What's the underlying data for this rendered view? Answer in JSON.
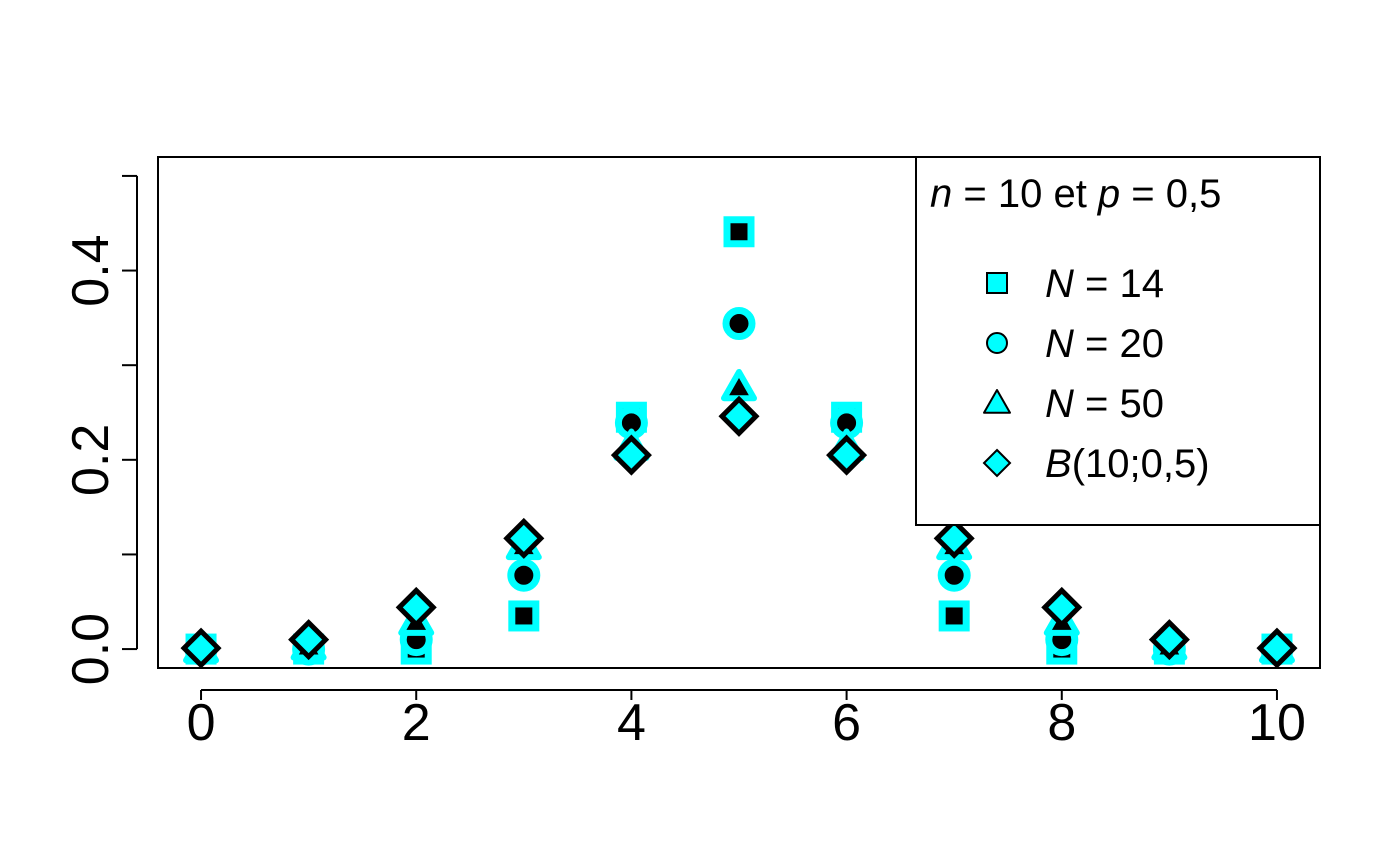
{
  "chart_data": {
    "type": "scatter",
    "title": "",
    "xlabel": "",
    "ylabel": "",
    "xlim": [
      -0.4,
      10.4
    ],
    "ylim": [
      -0.02,
      0.52
    ],
    "x_ticks": [
      "0",
      "2",
      "4",
      "6",
      "8",
      "10"
    ],
    "y_ticks": [
      "0.0",
      "0.2",
      "0.4"
    ],
    "y_minor_ticks": [
      0.1,
      0.3,
      0.5
    ],
    "grid": false,
    "legend_position": "top-right",
    "legend": {
      "title": {
        "n_sym": "n",
        "n_rest": " = 10 et ",
        "p_sym": "p",
        "p_rest": " = 0,5"
      },
      "entries": [
        {
          "sym": "N",
          "rest": " = 14",
          "marker": "square"
        },
        {
          "sym": "N",
          "rest": " = 20",
          "marker": "circle"
        },
        {
          "sym": "N",
          "rest": " = 50",
          "marker": "triangle"
        },
        {
          "sym": "B",
          "rest": "(10;0,5)",
          "marker": "diamond"
        }
      ]
    },
    "x": [
      0,
      1,
      2,
      3,
      4,
      5,
      6,
      7,
      8,
      9,
      10
    ],
    "series": [
      {
        "marker": "square",
        "values": [
          0,
          0,
          0,
          0.035,
          0.245,
          0.441,
          0.245,
          0.035,
          0,
          0,
          0
        ]
      },
      {
        "marker": "circle",
        "values": [
          0,
          0,
          0.01,
          0.078,
          0.239,
          0.344,
          0.239,
          0.078,
          0.01,
          0,
          0
        ]
      },
      {
        "marker": "triangle",
        "values": [
          0,
          0.003,
          0.029,
          0.109,
          0.214,
          0.277,
          0.214,
          0.109,
          0.029,
          0.003,
          0
        ]
      },
      {
        "marker": "diamond",
        "values": [
          0.001,
          0.01,
          0.044,
          0.117,
          0.205,
          0.246,
          0.205,
          0.117,
          0.044,
          0.01,
          0.001
        ]
      }
    ],
    "colors": {
      "fill_light": "#00ffff",
      "fill_dark": "#000000",
      "axis": "#000000"
    }
  }
}
